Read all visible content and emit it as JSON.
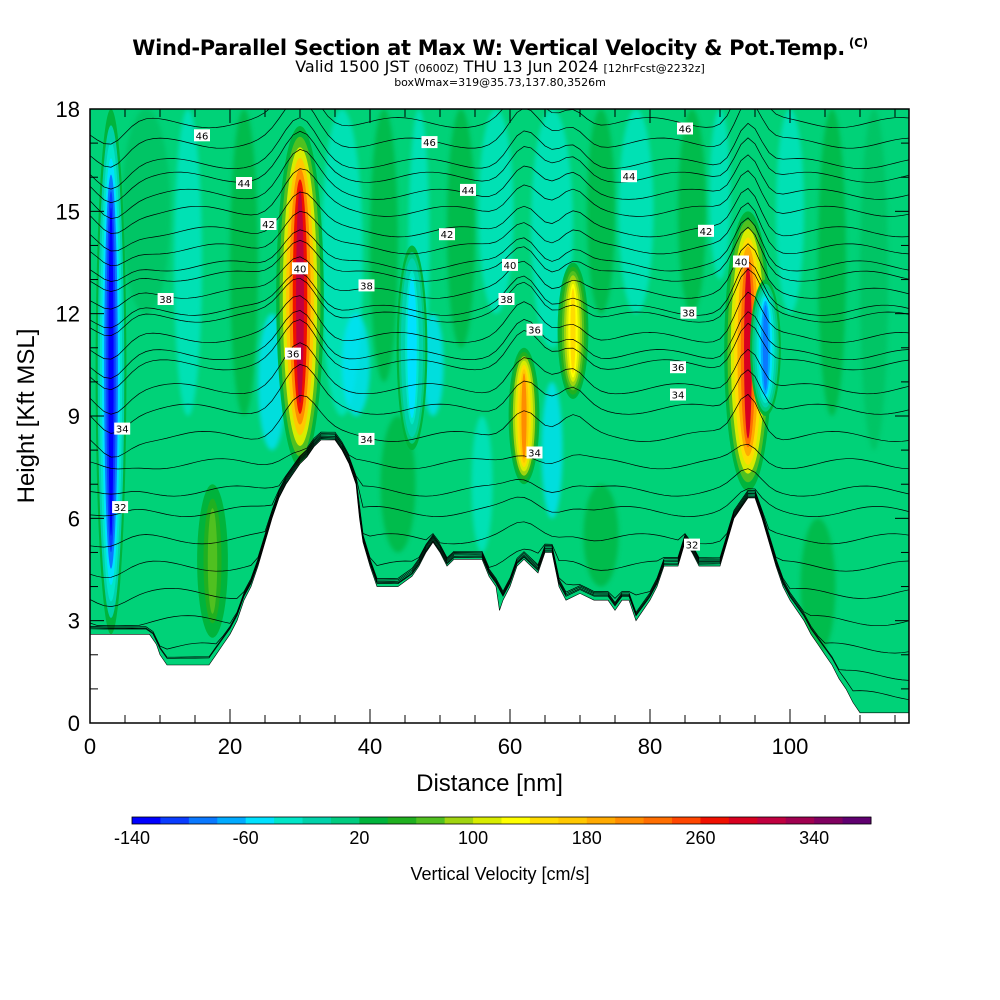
{
  "header": {
    "title": "Wind-Parallel Section at Max W: Vertical Velocity & Pot.Temp.",
    "copyright": "(C)",
    "valid_prefix": "Valid 1500 JST",
    "valid_utc": "(0600Z)",
    "valid_day": "THU 13 Jun 2024",
    "forecast_info": "[12hrFcst@2232z]",
    "box_info": "boxWmax=319@35.73,137.80,3526m"
  },
  "chart_data": {
    "type": "heatmap",
    "xlabel": "Distance [nm]",
    "ylabel": "Height [Kft MSL]",
    "xlim": [
      0,
      117
    ],
    "ylim": [
      0,
      18
    ],
    "x_ticks": [
      "0",
      "20",
      "40",
      "60",
      "80",
      "100"
    ],
    "y_ticks": [
      "0",
      "3",
      "6",
      "9",
      "12",
      "15",
      "18"
    ],
    "colorbar": {
      "label": "Vertical Velocity [cm/s]",
      "tick_labels": [
        "-140",
        "-60",
        "20",
        "100",
        "180",
        "260",
        "340"
      ],
      "levels": [
        -140,
        -120,
        -100,
        -80,
        -60,
        -40,
        -20,
        0,
        20,
        40,
        60,
        80,
        100,
        120,
        140,
        160,
        180,
        200,
        220,
        240,
        260,
        280,
        300,
        320,
        340,
        360,
        380
      ],
      "colors": [
        "#0000ff",
        "#0a3cff",
        "#0a78ff",
        "#00aaff",
        "#00e1ff",
        "#00e6c8",
        "#00d2aa",
        "#00cc80",
        "#00b43c",
        "#20b020",
        "#50c020",
        "#a0d410",
        "#d8ec00",
        "#ffff00",
        "#ffdc00",
        "#ffc800",
        "#ffaa00",
        "#ff8c00",
        "#ff6e00",
        "#ff4600",
        "#f01000",
        "#d80020",
        "#c00040",
        "#a00050",
        "#800060",
        "#600070"
      ]
    },
    "terrain_kft": [
      [
        0,
        2.6
      ],
      [
        8.5,
        2.6
      ],
      [
        9.5,
        2.3
      ],
      [
        10,
        2.0
      ],
      [
        11,
        1.7
      ],
      [
        17,
        1.7
      ],
      [
        18,
        2.0
      ],
      [
        19,
        2.3
      ],
      [
        20,
        2.6
      ],
      [
        21,
        3.0
      ],
      [
        22,
        3.6
      ],
      [
        23,
        4.0
      ],
      [
        24,
        4.6
      ],
      [
        25,
        5.3
      ],
      [
        26,
        6.0
      ],
      [
        27,
        6.6
      ],
      [
        28,
        7.0
      ],
      [
        29,
        7.3
      ],
      [
        30,
        7.6
      ],
      [
        31,
        7.8
      ],
      [
        32,
        8.1
      ],
      [
        33,
        8.3
      ],
      [
        35,
        8.3
      ],
      [
        36,
        8.0
      ],
      [
        37,
        7.6
      ],
      [
        38,
        7.0
      ],
      [
        38.5,
        6.0
      ],
      [
        39,
        5.3
      ],
      [
        40,
        4.6
      ],
      [
        41,
        4.0
      ],
      [
        42,
        4.0
      ],
      [
        44,
        4.0
      ],
      [
        46,
        4.3
      ],
      [
        47,
        4.6
      ],
      [
        48,
        5.0
      ],
      [
        49,
        5.3
      ],
      [
        50,
        5.0
      ],
      [
        51,
        4.6
      ],
      [
        52,
        4.8
      ],
      [
        56,
        4.8
      ],
      [
        57,
        4.3
      ],
      [
        58,
        4.0
      ],
      [
        58.5,
        3.3
      ],
      [
        59,
        3.6
      ],
      [
        60,
        4.0
      ],
      [
        61,
        4.6
      ],
      [
        62,
        4.8
      ],
      [
        63,
        4.6
      ],
      [
        64,
        4.4
      ],
      [
        65,
        5.0
      ],
      [
        66,
        5.0
      ],
      [
        67,
        4.0
      ],
      [
        68,
        3.6
      ],
      [
        70,
        3.8
      ],
      [
        72,
        3.6
      ],
      [
        74,
        3.6
      ],
      [
        75,
        3.3
      ],
      [
        76,
        3.6
      ],
      [
        77,
        3.6
      ],
      [
        78,
        3.0
      ],
      [
        79,
        3.3
      ],
      [
        80,
        3.6
      ],
      [
        81,
        4.0
      ],
      [
        82,
        4.6
      ],
      [
        84,
        4.6
      ],
      [
        85,
        5.3
      ],
      [
        86,
        5.0
      ],
      [
        87,
        4.6
      ],
      [
        90,
        4.6
      ],
      [
        91,
        5.3
      ],
      [
        92,
        6.0
      ],
      [
        93,
        6.3
      ],
      [
        94,
        6.6
      ],
      [
        95,
        6.6
      ],
      [
        96,
        6.0
      ],
      [
        97,
        5.3
      ],
      [
        98,
        4.6
      ],
      [
        99,
        4.0
      ],
      [
        100,
        3.6
      ],
      [
        101,
        3.3
      ],
      [
        102,
        3.0
      ],
      [
        103,
        2.6
      ],
      [
        104,
        2.3
      ],
      [
        105,
        2.0
      ],
      [
        106,
        1.7
      ],
      [
        107,
        1.3
      ],
      [
        108,
        1.0
      ],
      [
        109,
        0.6
      ],
      [
        110,
        0.3
      ],
      [
        117,
        0.3
      ]
    ],
    "vertical_velocity_features": [
      {
        "x": 3,
        "y_bottom": 2.6,
        "y_top": 18,
        "peak": -140
      },
      {
        "x": 30,
        "y_bottom": 7.5,
        "y_top": 17.5,
        "peak": 319
      },
      {
        "x": 62,
        "y_bottom": 7.0,
        "y_top": 11.0,
        "peak": 200
      },
      {
        "x": 69,
        "y_bottom": 9.5,
        "y_top": 13.5,
        "peak": 140
      },
      {
        "x": 94,
        "y_bottom": 6.8,
        "y_top": 15.0,
        "peak": 280
      },
      {
        "x": 96.5,
        "y_bottom": 9.0,
        "y_top": 13.0,
        "peak": -100
      },
      {
        "x": 17.5,
        "y_bottom": 2.5,
        "y_top": 7.0,
        "peak": 70
      },
      {
        "x": 46,
        "y_bottom": 8.0,
        "y_top": 14.0,
        "peak": -60
      }
    ],
    "isentropes": [
      {
        "theta": "46",
        "y_kft": 17.6
      },
      {
        "theta": "44",
        "y_kft": 16.0
      },
      {
        "theta": "42",
        "y_kft": 14.4
      },
      {
        "theta": "40",
        "y_kft": 13.1
      },
      {
        "theta": "38",
        "y_kft": 11.9
      },
      {
        "theta": "36",
        "y_kft": 10.5
      },
      {
        "theta": "34",
        "y_kft": 8.4
      },
      {
        "theta": "32",
        "y_kft": 6.2
      }
    ],
    "contour_labels": [
      {
        "text": "46",
        "x": 16,
        "y": 17.2
      },
      {
        "text": "46",
        "x": 48.5,
        "y": 17.0
      },
      {
        "text": "46",
        "x": 85,
        "y": 17.4
      },
      {
        "text": "44",
        "x": 22,
        "y": 15.8
      },
      {
        "text": "44",
        "x": 54,
        "y": 15.6
      },
      {
        "text": "44",
        "x": 77,
        "y": 16.0
      },
      {
        "text": "42",
        "x": 25.5,
        "y": 14.6
      },
      {
        "text": "42",
        "x": 51,
        "y": 14.3
      },
      {
        "text": "42",
        "x": 88,
        "y": 14.4
      },
      {
        "text": "40",
        "x": 30,
        "y": 13.3
      },
      {
        "text": "40",
        "x": 60,
        "y": 13.4
      },
      {
        "text": "40",
        "x": 93,
        "y": 13.5
      },
      {
        "text": "38",
        "x": 10.8,
        "y": 12.4
      },
      {
        "text": "38",
        "x": 39.5,
        "y": 12.8
      },
      {
        "text": "38",
        "x": 59.5,
        "y": 12.4
      },
      {
        "text": "38",
        "x": 85.5,
        "y": 12.0
      },
      {
        "text": "36",
        "x": 29,
        "y": 10.8
      },
      {
        "text": "36",
        "x": 63.5,
        "y": 11.5
      },
      {
        "text": "36",
        "x": 84,
        "y": 10.4
      },
      {
        "text": "34",
        "x": 4.6,
        "y": 8.6
      },
      {
        "text": "34",
        "x": 39.5,
        "y": 8.3
      },
      {
        "text": "34",
        "x": 63.5,
        "y": 7.9
      },
      {
        "text": "34",
        "x": 84,
        "y": 9.6
      },
      {
        "text": "32",
        "x": 4.3,
        "y": 6.3
      },
      {
        "text": "32",
        "x": 86,
        "y": 5.2
      }
    ]
  }
}
